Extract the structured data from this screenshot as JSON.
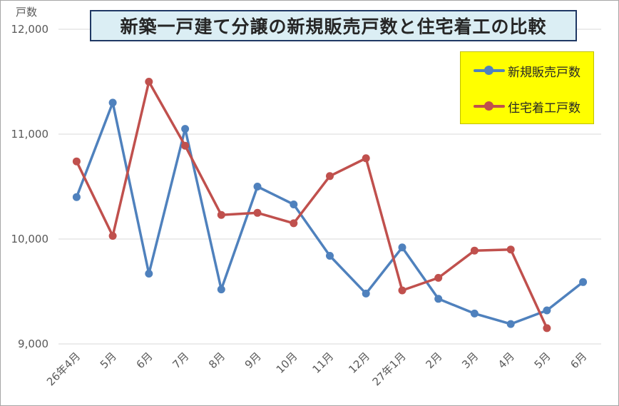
{
  "chart_data": {
    "type": "line",
    "title": "新築一戸建て分譲の新規販売戸数と住宅着工の比較",
    "ylabel": "戸数",
    "xlabel": "",
    "ylim": [
      9000,
      12000
    ],
    "yticks": [
      9000,
      10000,
      11000,
      12000
    ],
    "ytick_labels": [
      "9,000",
      "10,000",
      "11,000",
      "12,000"
    ],
    "grid": "horizontal",
    "legend_position": "top-right",
    "categories": [
      "26年4月",
      "5月",
      "6月",
      "7月",
      "8月",
      "9月",
      "10月",
      "11月",
      "12月",
      "27年1月",
      "2月",
      "3月",
      "4月",
      "5月",
      "6月"
    ],
    "series": [
      {
        "name": "新規販売戸数",
        "color": "#4f81bd",
        "values": [
          10400,
          11300,
          9670,
          11050,
          9520,
          10500,
          10330,
          9840,
          9480,
          9920,
          9430,
          9290,
          9190,
          9320,
          9590
        ]
      },
      {
        "name": "住宅着工戸数",
        "color": "#c0504d",
        "values": [
          10740,
          10030,
          11500,
          10890,
          10230,
          10250,
          10150,
          10600,
          10770,
          9510,
          9630,
          9890,
          9900,
          9150,
          null
        ]
      }
    ]
  }
}
